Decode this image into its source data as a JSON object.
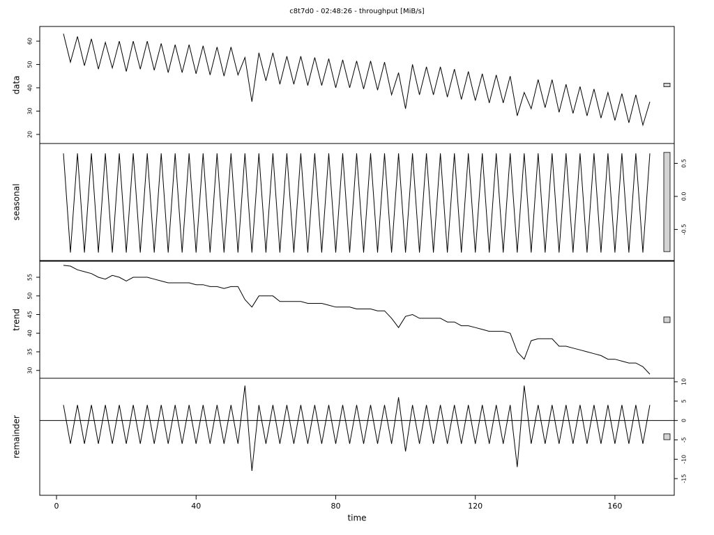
{
  "chart_data": {
    "type": "stl",
    "title": "c8t7d0 - 02:48:26 - throughput [MiB/s]",
    "xlabel": "time",
    "xlim": [
      -4.8,
      177
    ],
    "xticks": [
      0,
      40,
      80,
      120,
      160
    ],
    "x": [
      2,
      4,
      6,
      8,
      10,
      12,
      14,
      16,
      18,
      20,
      22,
      24,
      26,
      28,
      30,
      32,
      34,
      36,
      38,
      40,
      42,
      44,
      46,
      48,
      50,
      52,
      54,
      56,
      58,
      60,
      62,
      64,
      66,
      68,
      70,
      72,
      74,
      76,
      78,
      80,
      82,
      84,
      86,
      88,
      90,
      92,
      94,
      96,
      98,
      100,
      102,
      104,
      106,
      108,
      110,
      112,
      114,
      116,
      118,
      120,
      122,
      124,
      126,
      128,
      130,
      132,
      134,
      136,
      138,
      140,
      142,
      144,
      146,
      148,
      150,
      152,
      154,
      156,
      158,
      160,
      162,
      164,
      166,
      168,
      170
    ],
    "color": "#000000",
    "panels": [
      {
        "ylabel": "data",
        "axis_side": "left",
        "ylim": [
          16.1,
          66.3
        ],
        "yticks": [
          20,
          30,
          40,
          50,
          60
        ],
        "values": [
          63.2,
          51,
          62,
          49.5,
          61,
          48,
          59.5,
          48.5,
          60,
          47,
          60,
          48,
          60,
          47.5,
          59,
          46.5,
          58.5,
          46.5,
          58.5,
          46,
          58,
          45.5,
          57.5,
          45,
          57.5,
          45.5,
          53,
          34,
          55,
          43,
          55,
          41.5,
          53.5,
          41.5,
          53.5,
          41,
          53,
          41,
          52.5,
          40,
          52,
          40,
          51.5,
          39.5,
          51.5,
          39,
          51,
          37,
          46.5,
          31,
          50,
          37,
          49,
          37,
          49,
          36,
          48,
          35,
          47,
          34.5,
          46,
          33.5,
          45.5,
          33.5,
          45,
          28,
          38,
          31,
          43.5,
          31.5,
          43.5,
          29.5,
          41.5,
          29,
          40.5,
          28,
          39.5,
          27,
          38,
          26,
          37.5,
          25,
          37,
          24,
          34
        ]
      },
      {
        "ylabel": "seasonal",
        "axis_side": "right",
        "ylim": [
          -0.97,
          0.8
        ],
        "yticks": [
          -0.5,
          {
            "value": 0,
            "label": "0.0"
          },
          0.5
        ],
        "values": [
          0.65,
          -0.85,
          0.65,
          -0.85,
          0.65,
          -0.85,
          0.65,
          -0.85,
          0.65,
          -0.85,
          0.65,
          -0.85,
          0.65,
          -0.85,
          0.65,
          -0.85,
          0.65,
          -0.85,
          0.65,
          -0.85,
          0.65,
          -0.85,
          0.65,
          -0.85,
          0.65,
          -0.85,
          0.65,
          -0.85,
          0.65,
          -0.85,
          0.65,
          -0.85,
          0.65,
          -0.85,
          0.65,
          -0.85,
          0.65,
          -0.85,
          0.65,
          -0.85,
          0.65,
          -0.85,
          0.65,
          -0.85,
          0.65,
          -0.85,
          0.65,
          -0.85,
          0.65,
          -0.85,
          0.65,
          -0.85,
          0.65,
          -0.85,
          0.65,
          -0.85,
          0.65,
          -0.85,
          0.65,
          -0.85,
          0.65,
          -0.85,
          0.65,
          -0.85,
          0.65,
          -0.85,
          0.65,
          -0.85,
          0.65,
          -0.85,
          0.65,
          -0.85,
          0.65,
          -0.85,
          0.65,
          -0.85,
          0.65,
          -0.85,
          0.65,
          -0.85,
          0.65,
          -0.85,
          0.65,
          -0.85,
          0.65
        ]
      },
      {
        "ylabel": "trend",
        "axis_side": "left",
        "ylim": [
          27.9,
          59.3
        ],
        "yticks": [
          30,
          35,
          40,
          45,
          50,
          55
        ],
        "values": [
          58.2,
          58,
          57,
          56.5,
          56,
          55,
          54.5,
          55.5,
          55,
          54,
          55,
          55,
          55,
          54.5,
          54,
          53.5,
          53.5,
          53.5,
          53.5,
          53,
          53,
          52.5,
          52.5,
          52,
          52.5,
          52.5,
          49,
          47,
          50,
          50,
          50,
          48.5,
          48.5,
          48.5,
          48.5,
          48,
          48,
          48,
          47.5,
          47,
          47,
          47,
          46.5,
          46.5,
          46.5,
          46,
          46,
          44,
          41.5,
          44.5,
          45,
          44,
          44,
          44,
          44,
          43,
          43,
          42,
          42,
          41.5,
          41,
          40.5,
          40.5,
          40.5,
          40,
          35,
          33,
          38,
          38.5,
          38.5,
          38.5,
          36.5,
          36.5,
          36,
          35.5,
          35,
          34.5,
          34,
          33,
          33,
          32.5,
          32,
          32,
          31,
          29
        ]
      },
      {
        "ylabel": "remainder",
        "axis_side": "right",
        "ylim": [
          -19.3,
          10.9
        ],
        "yticks": [
          -15,
          -10,
          -5,
          0,
          5,
          10
        ],
        "values": [
          4,
          -6,
          4,
          -6,
          4,
          -6,
          4,
          -6,
          4,
          -6,
          4,
          -6,
          4,
          -6,
          4,
          -6,
          4,
          -6,
          4,
          -6,
          4,
          -6,
          4,
          -6,
          4,
          -6,
          9,
          -13,
          4,
          -6,
          4,
          -6,
          4,
          -6,
          4,
          -6,
          4,
          -6,
          4,
          -6,
          4,
          -6,
          4,
          -6,
          4,
          -6,
          4,
          -6,
          6,
          -8,
          4,
          -6,
          4,
          -6,
          4,
          -6,
          4,
          -6,
          4,
          -6,
          4,
          -6,
          4,
          -6,
          4,
          -12,
          9,
          -6,
          4,
          -6,
          4,
          -6,
          4,
          -6,
          4,
          -6,
          4,
          -6,
          4,
          -6,
          4,
          -6,
          4,
          -6,
          4
        ]
      }
    ]
  }
}
